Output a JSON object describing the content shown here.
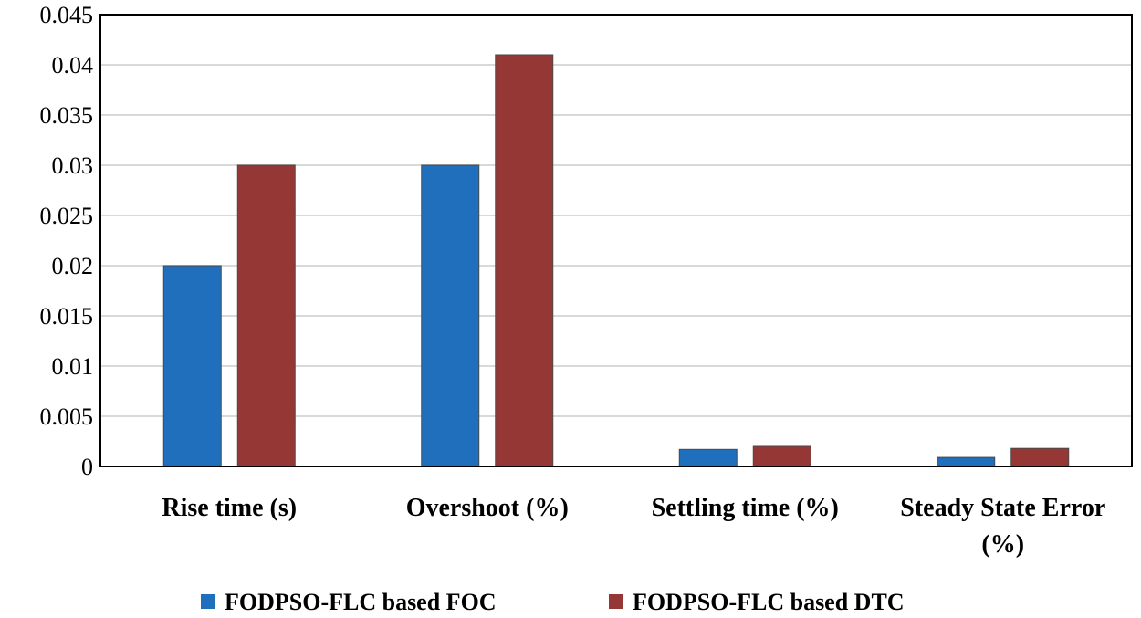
{
  "chart_data": {
    "type": "bar",
    "title": "",
    "xlabel": "",
    "ylabel": "",
    "categories": [
      "Rise time (s)",
      "Overshoot (%)",
      "Settling time (%)",
      "Steady State Error (%)"
    ],
    "category_label_lines": [
      [
        "Rise time (s)"
      ],
      [
        "Overshoot (%)"
      ],
      [
        "Settling time (%)"
      ],
      [
        "Steady State Error",
        "(%)"
      ]
    ],
    "series": [
      {
        "name": "FODPSO-FLC based FOC",
        "color": "#1f6fbd",
        "values": [
          0.02,
          0.03,
          0.0017,
          0.0009
        ]
      },
      {
        "name": "FODPSO-FLC based DTC",
        "color": "#953735",
        "values": [
          0.03,
          0.041,
          0.002,
          0.0018
        ]
      }
    ],
    "ylim": [
      0,
      0.045
    ],
    "yticks": [
      0,
      0.005,
      0.01,
      0.015,
      0.02,
      0.025,
      0.03,
      0.035,
      0.04,
      0.045
    ],
    "ytick_labels": [
      "0",
      "0.005",
      "0.01",
      "0.015",
      "0.02",
      "0.025",
      "0.03",
      "0.035",
      "0.04",
      "0.045"
    ],
    "grid": true,
    "legend_position": "bottom-center"
  }
}
